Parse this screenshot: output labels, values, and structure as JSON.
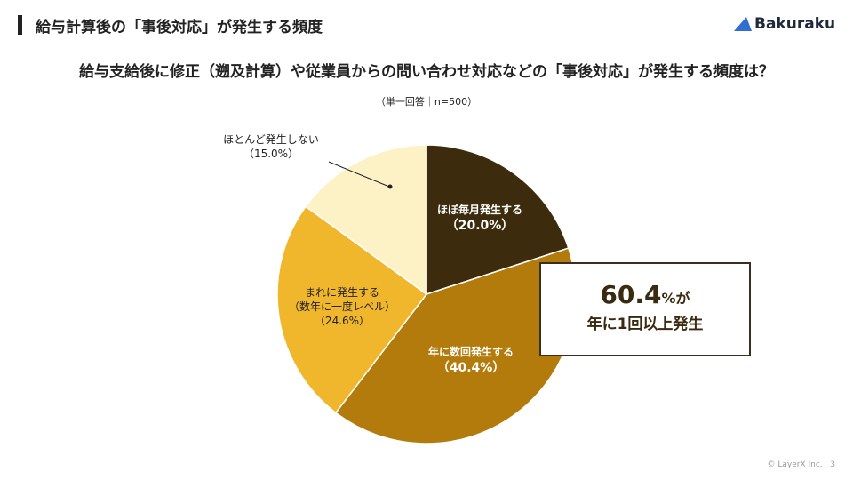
{
  "header": {
    "title": "給与計算後の「事後対応」が発生する頻度",
    "logo": "Bakuraku"
  },
  "chart_data": {
    "type": "pie",
    "title": "給与支給後に修正（遡及計算）や従業員からの問い合わせ対応などの「事後対応」が発生する頻度は？",
    "subtitle": "（単一回答｜n=500）",
    "slices": [
      {
        "label": "ほぼ毎月発生する",
        "value": 20.0,
        "pct": "（20.0%）",
        "color": "#3d2b0e",
        "text_color": "#ffffff"
      },
      {
        "label": "年に数回発生する",
        "value": 40.4,
        "pct": "（40.4%）",
        "color": "#b27b0c",
        "text_color": "#ffffff"
      },
      {
        "label": "まれに発生する\n（数年に一度レベル）",
        "value": 24.6,
        "pct": "（24.6%）",
        "color": "#f0b62c",
        "text_color": "#222222"
      },
      {
        "label": "ほとんど発生しない",
        "value": 15.0,
        "pct": "（15.0%）",
        "color": "#fdf1c6",
        "text_color": "#222222"
      }
    ]
  },
  "callout": {
    "number": "60.4",
    "unit": "%が",
    "text": "年に1回以上発生"
  },
  "footer": {
    "copyright": "© LayerX Inc.",
    "page": "3"
  }
}
